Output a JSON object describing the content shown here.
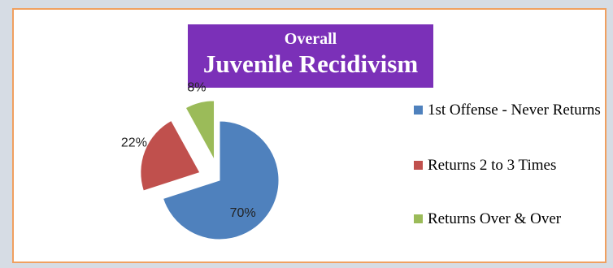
{
  "chart_data": {
    "type": "pie",
    "title": "Overall",
    "subtitle": "Juvenile Recidivism",
    "slices": [
      {
        "label": "1st Offense - Never Returns",
        "value": 70,
        "display": "70%",
        "color": "#4f81bd",
        "exploded": false
      },
      {
        "label": "Returns 2 to 3 Times",
        "value": 22,
        "display": "22%",
        "color": "#c0504d",
        "exploded": true
      },
      {
        "label": "Returns Over & Over",
        "value": 8,
        "display": "8%",
        "color": "#9bbb59",
        "exploded": true
      }
    ],
    "legend_position": "right"
  }
}
